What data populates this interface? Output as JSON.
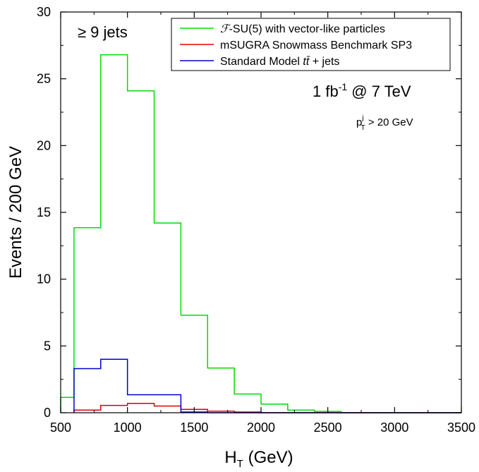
{
  "chart_data": {
    "type": "step-histogram",
    "xlabel": "H_T (GeV)",
    "ylabel": "Events / 200 GeV",
    "xlim": [
      500,
      3500
    ],
    "ylim": [
      0,
      30
    ],
    "x_ticks": [
      500,
      1000,
      1500,
      2000,
      2500,
      3000,
      3500
    ],
    "y_ticks": [
      0,
      5,
      10,
      15,
      20,
      25,
      30
    ],
    "grid": false,
    "legend_position": "top-right",
    "bin_width": 200,
    "annotations": {
      "jets": "≥ 9 jets",
      "lumi": "1 fb⁻¹ @ 7 TeV",
      "cut": "p_T^j > 20 GeV"
    },
    "series": [
      {
        "name": "F-SU(5) with vector-like particles",
        "color": "#00dd00",
        "bin_edges": [
          400,
          600,
          800,
          1000,
          1200,
          1400,
          1600,
          1800,
          2000,
          2200,
          2400,
          2600
        ],
        "values": [
          1.15,
          13.85,
          26.8,
          24.1,
          14.2,
          7.3,
          3.35,
          1.4,
          0.65,
          0.2,
          0.1
        ]
      },
      {
        "name": "mSUGRA Snowmass Benchmark SP3",
        "color": "#dd0000",
        "bin_edges": [
          600,
          800,
          1000,
          1200,
          1400,
          1600,
          1800,
          2000
        ],
        "values": [
          0.2,
          0.55,
          0.7,
          0.5,
          0.25,
          0.12,
          0.05
        ]
      },
      {
        "name": "Standard Model tt̄ + jets",
        "color": "#0000cc",
        "bin_edges": [
          600,
          800,
          1000,
          1400,
          1600
        ],
        "values": [
          3.3,
          4.0,
          1.35,
          0.05
        ]
      }
    ]
  }
}
